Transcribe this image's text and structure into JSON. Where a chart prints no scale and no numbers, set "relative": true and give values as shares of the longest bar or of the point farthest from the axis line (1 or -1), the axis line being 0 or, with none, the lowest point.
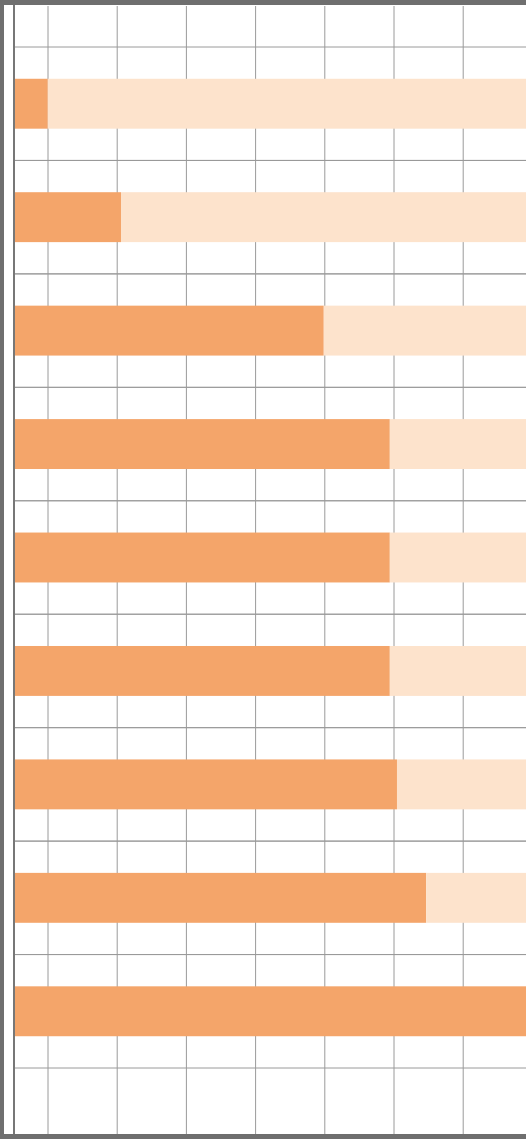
{
  "chart_data": {
    "type": "bar",
    "orientation": "horizontal",
    "stacked": true,
    "relative": true,
    "grid": true,
    "categories": [
      null,
      null,
      null,
      null,
      null,
      null,
      null,
      null,
      null
    ],
    "series": [
      {
        "color": "#f4a56a",
        "values": [
          0.066,
          0.209,
          0.605,
          0.734,
          0.734,
          0.734,
          0.748,
          0.805,
          1.0
        ]
      },
      {
        "color": "#fde3cc",
        "values": [
          0.934,
          0.791,
          0.395,
          0.266,
          0.266,
          0.266,
          0.252,
          0.195,
          0.0
        ]
      }
    ]
  }
}
